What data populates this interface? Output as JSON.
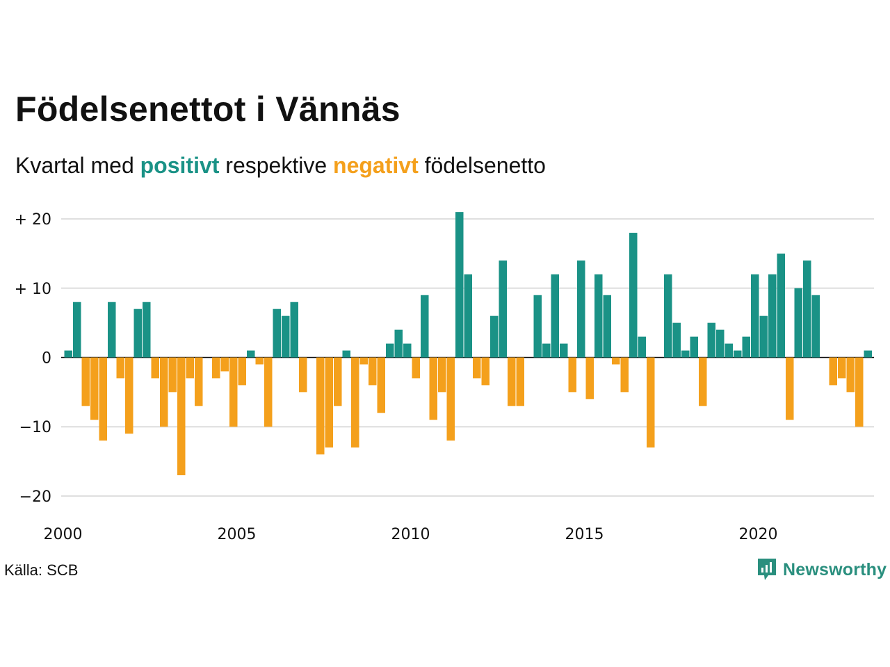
{
  "title": "Födelsenettot i Vännäs",
  "subtitle": {
    "prefix": "Kvartal med ",
    "positive": "positivt",
    "middle": " respektive ",
    "negative": "negativt",
    "suffix": " födelsenetto"
  },
  "source": "Källa: SCB",
  "brand": "Newsworthy",
  "colors": {
    "positive": "#1a9286",
    "negative": "#f4a01c",
    "grid": "#dddddd",
    "axis": "#111111",
    "brand": "#2a8f7e"
  },
  "chart_data": {
    "type": "bar",
    "x_start": "2000 Q1",
    "ylim": [
      -20,
      21
    ],
    "yticks": [
      {
        "value": 20,
        "label": "+ 20"
      },
      {
        "value": 10,
        "label": "+ 10"
      },
      {
        "value": 0,
        "label": "0"
      },
      {
        "value": -10,
        "label": "−10"
      },
      {
        "value": -20,
        "label": "−20"
      }
    ],
    "xticks": [
      {
        "year": 2000,
        "label": "2000"
      },
      {
        "year": 2005,
        "label": "2005"
      },
      {
        "year": 2010,
        "label": "2010"
      },
      {
        "year": 2015,
        "label": "2015"
      },
      {
        "year": 2020,
        "label": "2020"
      }
    ],
    "grid": true,
    "values": [
      1,
      8,
      -7,
      -9,
      -12,
      8,
      -3,
      -11,
      7,
      8,
      -3,
      -10,
      -5,
      -17,
      -3,
      -7,
      0,
      -3,
      -2,
      -10,
      -4,
      1,
      -1,
      -10,
      7,
      6,
      8,
      -5,
      0,
      -14,
      -13,
      -7,
      1,
      -13,
      -1,
      -4,
      -8,
      2,
      4,
      2,
      -3,
      9,
      -9,
      -5,
      -12,
      21,
      12,
      -3,
      -4,
      6,
      14,
      -7,
      -7,
      0,
      9,
      2,
      12,
      2,
      -5,
      14,
      -6,
      12,
      9,
      -1,
      -5,
      18,
      3,
      -13,
      0,
      12,
      5,
      1,
      3,
      -7,
      5,
      4,
      2,
      1,
      3,
      12,
      6,
      12,
      15,
      -9,
      10,
      14,
      9,
      0,
      -4,
      -3,
      -5,
      -10,
      1
    ]
  }
}
